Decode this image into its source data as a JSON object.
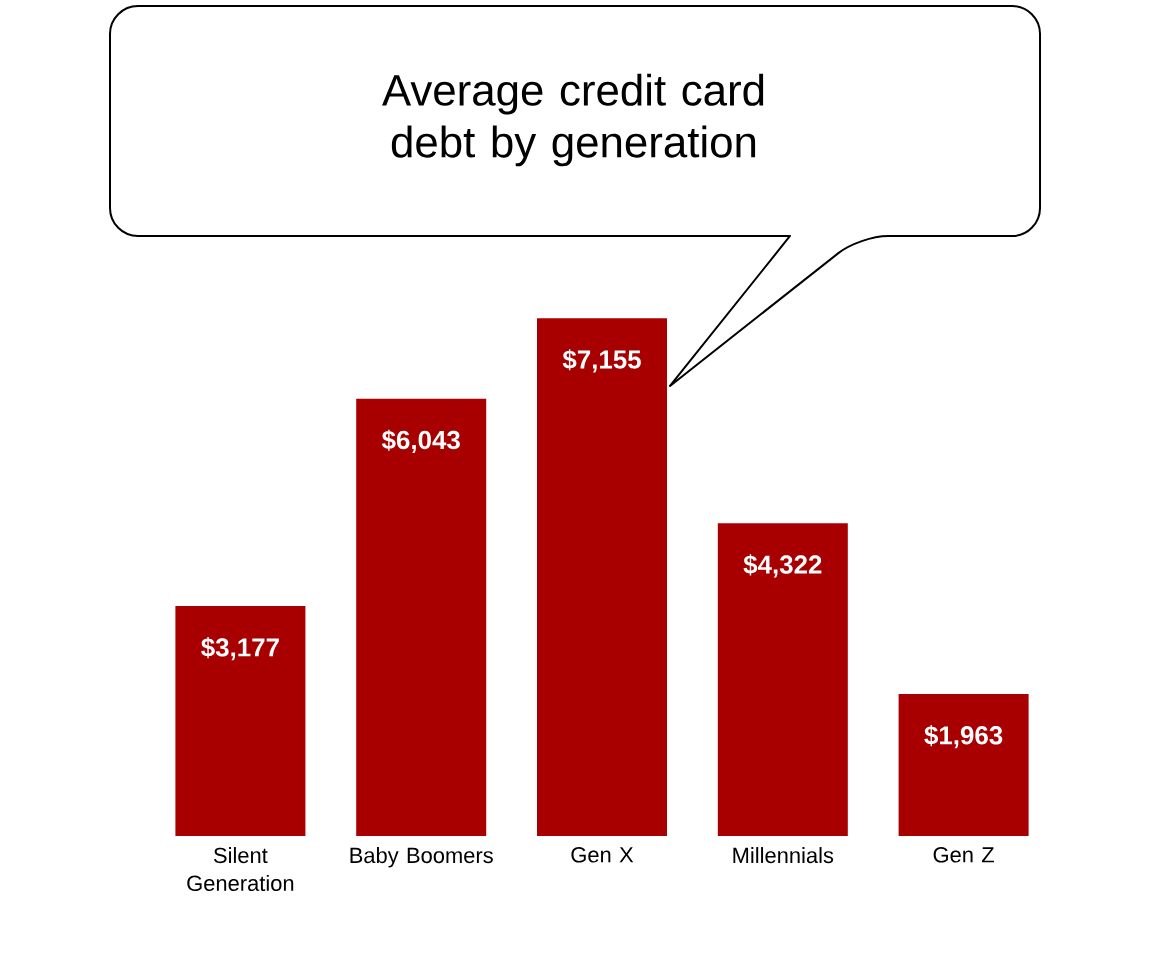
{
  "chart_data": {
    "type": "bar",
    "title": "Average credit card debt by generation",
    "categories": [
      "Silent Generation",
      "Baby Boomers",
      "Gen X",
      "Millennials",
      "Gen Z"
    ],
    "values": [
      3177,
      6043,
      7155,
      4322,
      1963
    ],
    "value_labels": [
      "$3,177",
      "$6,043",
      "$7,155",
      "$4,322",
      "$1,963"
    ],
    "color": "#a80000"
  }
}
